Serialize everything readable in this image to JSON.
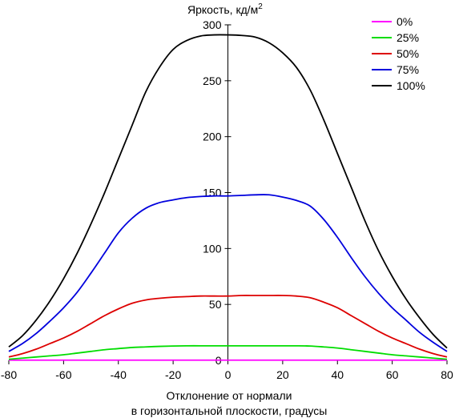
{
  "chart_data": {
    "type": "line",
    "ylabel": "Яркость, кд/м",
    "ylabel_sup": "2",
    "xlabel_line1": "Отклонение от нормали",
    "xlabel_line2": "в горизонтальной плоскости, градусы",
    "xlim": [
      -80,
      80
    ],
    "ylim": [
      0,
      300
    ],
    "xticks": [
      -80,
      -60,
      -40,
      -20,
      0,
      20,
      40,
      60,
      80
    ],
    "yticks": [
      0,
      50,
      100,
      150,
      200,
      250,
      300
    ],
    "grid": false,
    "legend_position": "top-right",
    "x": [
      -80,
      -75,
      -70,
      -65,
      -60,
      -55,
      -50,
      -45,
      -40,
      -35,
      -30,
      -25,
      -20,
      -15,
      -10,
      -5,
      0,
      5,
      10,
      15,
      20,
      25,
      30,
      35,
      40,
      45,
      50,
      55,
      60,
      65,
      70,
      75,
      80
    ],
    "series": [
      {
        "name": "0%",
        "color": "#ff00ff",
        "values": [
          0.2,
          0.2,
          0.2,
          0.2,
          0.2,
          0.2,
          0.2,
          0.2,
          0.2,
          0.2,
          0.2,
          0.2,
          0.2,
          0.2,
          0.2,
          0.2,
          0.2,
          0.2,
          0.2,
          0.2,
          0.2,
          0.2,
          0.2,
          0.2,
          0.2,
          0.2,
          0.2,
          0.2,
          0.2,
          0.2,
          0.2,
          0.2,
          0.2
        ]
      },
      {
        "name": "25%",
        "color": "#00dd00",
        "values": [
          1,
          2,
          3,
          4,
          5,
          6.5,
          8,
          9.5,
          10.5,
          11.5,
          12,
          12.5,
          12.8,
          13,
          13,
          13,
          13,
          13,
          13,
          13,
          13,
          13,
          12.8,
          12,
          11,
          9.5,
          8,
          6.5,
          5,
          4,
          3,
          2,
          1
        ]
      },
      {
        "name": "50%",
        "color": "#dd0000",
        "values": [
          3,
          6,
          10,
          15,
          20,
          26,
          33,
          40,
          46,
          51,
          54,
          55.5,
          56.5,
          57,
          57.5,
          57.5,
          57.5,
          58,
          58,
          58,
          58,
          57.5,
          56,
          52,
          47,
          40,
          33,
          26,
          20,
          15,
          10,
          6,
          3
        ]
      },
      {
        "name": "75%",
        "color": "#0000dd",
        "values": [
          8,
          15,
          24,
          35,
          47,
          61,
          78,
          96,
          114,
          127,
          136,
          141,
          143.5,
          145.5,
          146.5,
          147,
          147,
          147.5,
          148,
          148,
          146,
          143,
          138,
          126,
          110,
          92,
          75,
          60,
          47,
          36,
          25,
          16,
          8
        ]
      },
      {
        "name": "100%",
        "color": "#000000",
        "values": [
          12,
          22,
          36,
          53,
          73,
          96,
          122,
          150,
          180,
          210,
          240,
          262,
          278,
          286,
          290,
          291,
          291,
          290.5,
          289,
          284,
          275,
          262,
          242,
          215,
          185,
          155,
          125,
          98,
          75,
          55,
          38,
          23,
          11
        ]
      }
    ]
  }
}
